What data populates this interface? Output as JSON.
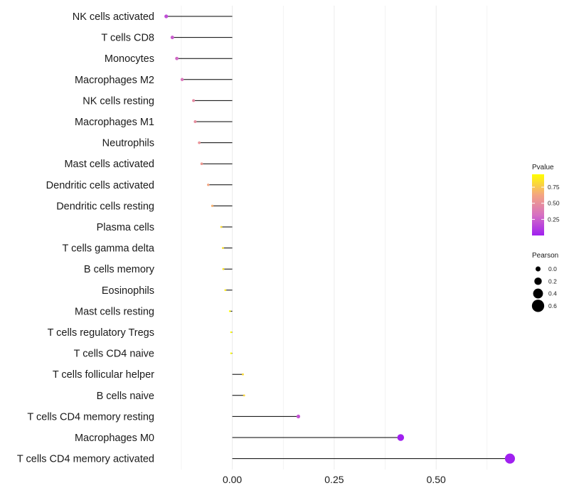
{
  "chart_data": {
    "type": "lollipop",
    "title": "",
    "xlabel": "",
    "ylabel": "",
    "xlim": [
      -0.165,
      0.695
    ],
    "x_ticks": [
      0.0,
      0.25,
      0.5
    ],
    "x_tick_labels": [
      "0.00",
      "0.25",
      "0.50"
    ],
    "grid": true,
    "points": [
      {
        "label": "NK cells activated",
        "pearson": -0.162,
        "pvalue": 0.18
      },
      {
        "label": "T cells CD8",
        "pearson": -0.147,
        "pvalue": 0.24
      },
      {
        "label": "Monocytes",
        "pearson": -0.136,
        "pvalue": 0.29
      },
      {
        "label": "Macrophages M2",
        "pearson": -0.123,
        "pvalue": 0.35
      },
      {
        "label": "NK cells resting",
        "pearson": -0.095,
        "pvalue": 0.47
      },
      {
        "label": "Macrophages M1",
        "pearson": -0.091,
        "pvalue": 0.49
      },
      {
        "label": "Neutrophils",
        "pearson": -0.081,
        "pvalue": 0.52
      },
      {
        "label": "Mast cells activated",
        "pearson": -0.075,
        "pvalue": 0.55
      },
      {
        "label": "Dendritic cells activated",
        "pearson": -0.059,
        "pvalue": 0.63
      },
      {
        "label": "Dendritic cells resting",
        "pearson": -0.049,
        "pvalue": 0.67
      },
      {
        "label": "Plasma cells",
        "pearson": -0.027,
        "pvalue": 0.82
      },
      {
        "label": "T cells gamma delta",
        "pearson": -0.023,
        "pvalue": 0.84
      },
      {
        "label": "B cells memory",
        "pearson": -0.022,
        "pvalue": 0.85
      },
      {
        "label": "Eosinophils",
        "pearson": -0.017,
        "pvalue": 0.88
      },
      {
        "label": "Mast cells resting",
        "pearson": -0.006,
        "pvalue": 0.96
      },
      {
        "label": "T cells regulatory  Tregs ",
        "pearson": -0.003,
        "pvalue": 0.98
      },
      {
        "label": "T cells CD4 naive",
        "pearson": -0.003,
        "pvalue": 0.98
      },
      {
        "label": "T cells follicular helper",
        "pearson": 0.026,
        "pvalue": 0.82
      },
      {
        "label": "B cells naive",
        "pearson": 0.029,
        "pvalue": 0.8
      },
      {
        "label": "T cells CD4 memory resting",
        "pearson": 0.162,
        "pvalue": 0.2
      },
      {
        "label": "Macrophages M0",
        "pearson": 0.413,
        "pvalue": 0.0
      },
      {
        "label": "T cells CD4 memory activated",
        "pearson": 0.681,
        "pvalue": 0.0
      }
    ],
    "legend": {
      "position": "right",
      "color": {
        "title": "Pvalue",
        "ticks": [
          0.25,
          0.5,
          0.75
        ],
        "tick_labels": [
          "0.25",
          "0.50",
          "0.75"
        ],
        "range": [
          0.0,
          0.95
        ],
        "colors": [
          "#A020F0",
          "#D670C2",
          "#F4A680",
          "#FFFF00"
        ]
      },
      "size": {
        "title": "Pearson",
        "values": [
          0.0,
          0.2,
          0.4,
          0.6
        ],
        "labels": [
          "0.0",
          "0.2",
          "0.4",
          "0.6"
        ]
      }
    },
    "colors": {
      "stem": "#000000",
      "grid": "#EBEBEB"
    }
  }
}
